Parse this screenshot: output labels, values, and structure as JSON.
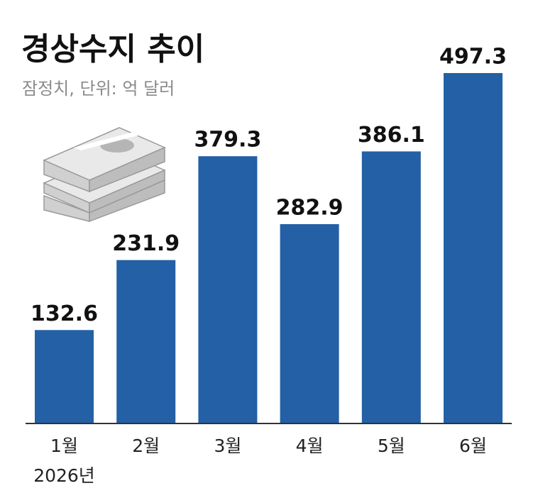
{
  "chart_data": {
    "type": "bar",
    "title": "경상수지 추이",
    "subtitle": "잠정치, 단위: 억 달러",
    "categories": [
      "1월",
      "2월",
      "3월",
      "4월",
      "5월",
      "6월"
    ],
    "values": [
      132.6,
      231.9,
      379.3,
      282.9,
      386.1,
      497.3
    ],
    "annotation": "2026년",
    "color": "#2360a5"
  }
}
